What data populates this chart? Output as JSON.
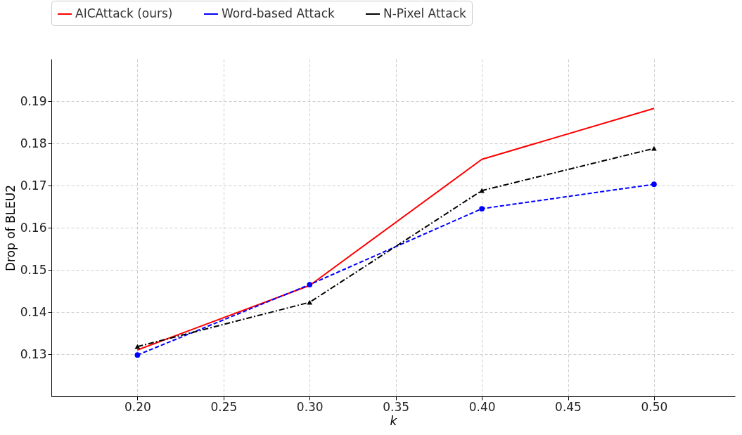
{
  "chart_data": {
    "type": "line",
    "xlabel": "k",
    "ylabel": "Drop of BLEU2",
    "x": [
      0.2,
      0.3,
      0.4,
      0.5
    ],
    "series": [
      {
        "name": "AICAttack (ours)",
        "color": "#ff0000",
        "values": [
          0.131,
          0.1463,
          0.1762,
          0.1883
        ],
        "marker": "none",
        "line_style": "solid"
      },
      {
        "name": "Word-based Attack",
        "color": "#0000ff",
        "values": [
          0.1298,
          0.1465,
          0.1645,
          0.1703
        ],
        "marker": "circle",
        "line_style": "dashed"
      },
      {
        "name": "N-Pixel Attack",
        "color": "#000000",
        "values": [
          0.1318,
          0.1423,
          0.1688,
          0.1788
        ],
        "marker": "triangle",
        "line_style": "dashdot"
      }
    ],
    "xlim": [
      0.15,
      0.547
    ],
    "xticks": [
      {
        "value": 0.2,
        "label": "0.20"
      },
      {
        "value": 0.25,
        "label": "0.25"
      },
      {
        "value": 0.3,
        "label": "0.30"
      },
      {
        "value": 0.35,
        "label": "0.35"
      },
      {
        "value": 0.4,
        "label": "0.40"
      },
      {
        "value": 0.45,
        "label": "0.45"
      },
      {
        "value": 0.5,
        "label": "0.50"
      }
    ],
    "ylim": [
      0.12,
      0.2
    ],
    "yticks": [
      {
        "value": 0.13,
        "label": "0.13"
      },
      {
        "value": 0.14,
        "label": "0.14"
      },
      {
        "value": 0.15,
        "label": "0.15"
      },
      {
        "value": 0.16,
        "label": "0.16"
      },
      {
        "value": 0.17,
        "label": "0.17"
      },
      {
        "value": 0.18,
        "label": "0.18"
      },
      {
        "value": 0.19,
        "label": "0.19"
      }
    ],
    "grid": true,
    "legend": "top"
  }
}
